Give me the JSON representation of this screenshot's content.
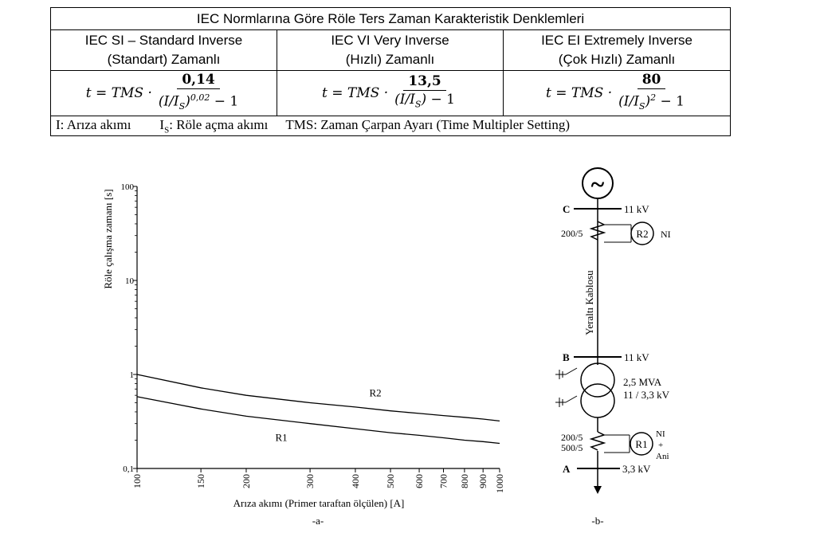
{
  "table": {
    "title": "IEC Normlarına Göre Röle Ters Zaman Karakteristik Denklemleri",
    "columns": [
      {
        "line1": "IEC SI – Standard Inverse",
        "line2": "(Standart) Zamanlı",
        "numerator": "0,14",
        "denominator": "(I/I",
        "subscript": "S",
        "denominator_tail": ")",
        "exponent": "0,02",
        "minus": "− 1"
      },
      {
        "line1": "IEC VI Very Inverse",
        "line2": "(Hızlı) Zamanlı",
        "numerator": "13,5",
        "denominator": "(I/I",
        "subscript": "S",
        "denominator_tail": ")",
        "exponent": "",
        "minus": "− 1"
      },
      {
        "line1": "IEC EI Extremely Inverse",
        "line2": "(Çok Hızlı) Zamanlı",
        "numerator": "80",
        "denominator": "(I/I",
        "subscript": "S",
        "denominator_tail": ")",
        "exponent": "2",
        "minus": "− 1"
      }
    ],
    "formula_prefix": "t = TMS ·",
    "note_I": "I: Arıza akımı",
    "note_Is": "I",
    "note_Is_sub": "S",
    "note_Is_rest": ": Röle açma akımı",
    "note_TMS": "TMS: Zaman Çarpan Ayarı (Time Multipler Setting)"
  },
  "chart_data": {
    "type": "line",
    "xlabel": "Arıza akımı (Primer taraftan ölçülen) [A]",
    "ylabel": "Röle çalışma zamanı [s]",
    "x_scale": "log",
    "y_scale": "log",
    "xlim": [
      100,
      1000
    ],
    "ylim": [
      0.1,
      100
    ],
    "x_ticks": [
      "100",
      "150",
      "200",
      "300",
      "400",
      "500",
      "600",
      "700",
      "800",
      "900",
      "1000"
    ],
    "x_tick_values": [
      100,
      150,
      200,
      300,
      400,
      500,
      600,
      700,
      800,
      900,
      1000
    ],
    "y_ticks": [
      "0,1",
      "1",
      "10",
      "100"
    ],
    "y_tick_values": [
      0.1,
      1,
      10,
      100
    ],
    "grid": false,
    "caption": "-a-",
    "series": [
      {
        "name": "R2",
        "x": [
          100,
          150,
          200,
          300,
          400,
          500,
          600,
          700,
          800,
          900,
          1000
        ],
        "y": [
          1.0,
          0.72,
          0.6,
          0.5,
          0.45,
          0.41,
          0.385,
          0.365,
          0.35,
          0.335,
          0.32
        ]
      },
      {
        "name": "R1",
        "x": [
          100,
          150,
          200,
          300,
          400,
          500,
          600,
          700,
          800,
          900,
          1000
        ],
        "y": [
          0.58,
          0.43,
          0.36,
          0.3,
          0.265,
          0.24,
          0.225,
          0.212,
          0.2,
          0.193,
          0.185
        ]
      }
    ]
  },
  "diagram": {
    "source_symbol": "~",
    "bus_C": "C",
    "bus_C_voltage": "11 kV",
    "ct_R2_ratio": "200/5",
    "relay_R2": "R2",
    "relay_R2_type": "NI",
    "cable_label": "Yeraltı Kablosu",
    "bus_B": "B",
    "bus_B_voltage": "11 kV",
    "transformer_rating": "2,5 MVA",
    "transformer_ratio": "11 / 3,3 kV",
    "ct_R1_ratio_1": "200/5",
    "ct_R1_ratio_2": "500/5",
    "relay_R1": "R1",
    "relay_R1_type": "NI",
    "relay_R1_plus": "+",
    "relay_R1_inst": "Ani",
    "bus_A": "A",
    "bus_A_voltage": "3,3 kV",
    "caption": "-b-"
  }
}
